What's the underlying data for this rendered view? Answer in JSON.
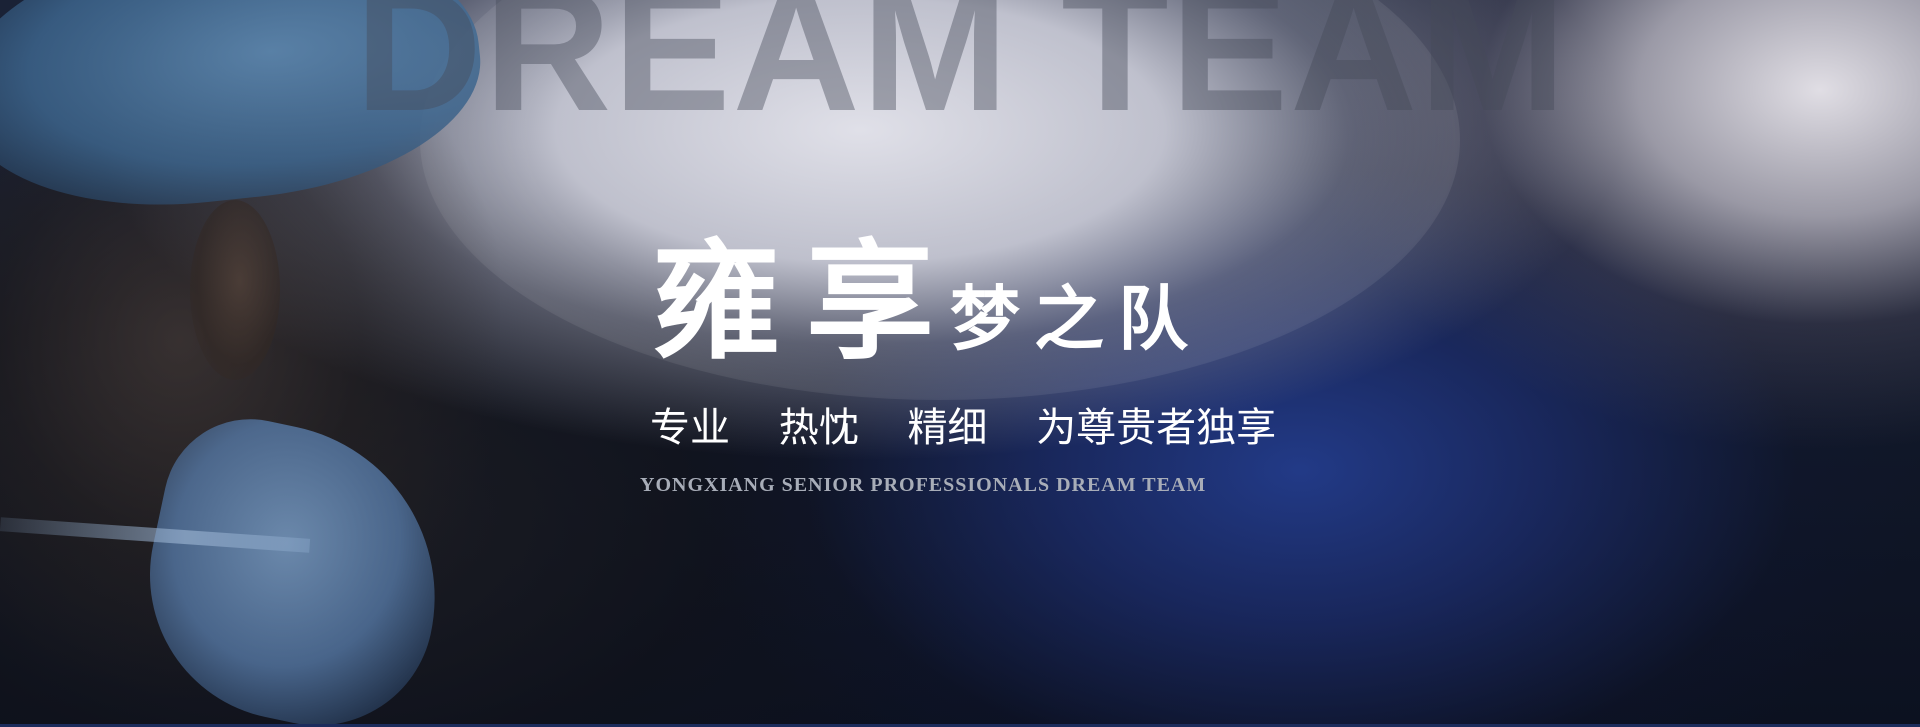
{
  "banner": {
    "background_word": "DREAM TEAM",
    "headline_large": "雍享",
    "headline_small": "梦之队",
    "slogan": [
      "专业",
      "热忱",
      "精细",
      "为尊贵者独享"
    ],
    "subline": "YONGXIANG SENIOR PROFESSIONALS DREAM TEAM"
  },
  "colors": {
    "background_dark": "#0d1220",
    "surgical_light": "#e4e4ec",
    "accent_blue": "#233c8c",
    "text_primary": "#ffffff",
    "text_secondary": "#a8adb8"
  }
}
